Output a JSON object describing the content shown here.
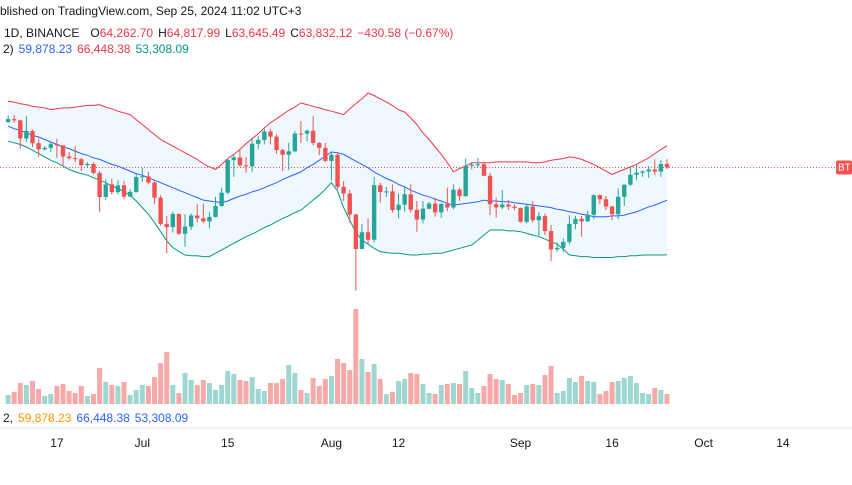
{
  "chart_data": {
    "type": "candlestick",
    "title": "blished on TradingView.com, Sep 25, 2024 11:02 UTC+3",
    "symbol": "1D, BINANCE",
    "ohlc": [
      {
        "key": "O",
        "value": "64,262.70"
      },
      {
        "key": "H",
        "value": "64,817.99"
      },
      {
        "key": "L",
        "value": "63,645.49"
      },
      {
        "key": "C",
        "value": "63,832.12"
      }
    ],
    "change": "−430.58 (−0.67%)",
    "bb_legend": {
      "label": "2)",
      "items": [
        {
          "text": "59,878.23",
          "color": "#2962ff"
        },
        {
          "text": "66,448.38",
          "color": "#f23645"
        },
        {
          "text": "53,308.09",
          "color": "#089981"
        }
      ]
    },
    "bottom_legend": {
      "label": "2,",
      "items": [
        {
          "text": "59,878.23",
          "color": "#ff9800"
        },
        {
          "text": "66,448.38",
          "color": "#2962ff"
        },
        {
          "text": "53,308.09",
          "color": "#2962ff"
        }
      ]
    },
    "price_tag": "BT",
    "up_color": "#26a69a",
    "down_color": "#ef5350",
    "volume_up_color": "#9ed7d2",
    "volume_down_color": "#f7a9a7",
    "band_fill": "rgba(33,150,243,0.07)",
    "xlim": [
      "06-08",
      "10-25"
    ],
    "xticks": [
      {
        "value": "06-17",
        "label": "17"
      },
      {
        "value": "07-01",
        "label": "Jul"
      },
      {
        "value": "07-15",
        "label": "15"
      },
      {
        "value": "08-01",
        "label": "Aug"
      },
      {
        "value": "08-12",
        "label": "12"
      },
      {
        "value": "09-01",
        "label": "Sep"
      },
      {
        "value": "09-16",
        "label": "16"
      },
      {
        "value": "10-01",
        "label": "Oct"
      },
      {
        "value": "10-14",
        "label": "14"
      }
    ],
    "ylim": [
      48000,
      74000
    ],
    "volume_lim": [
      0,
      100000
    ],
    "x": [
      "06-09",
      "06-10",
      "06-11",
      "06-12",
      "06-13",
      "06-14",
      "06-15",
      "06-16",
      "06-17",
      "06-18",
      "06-19",
      "06-20",
      "06-21",
      "06-22",
      "06-23",
      "06-24",
      "06-25",
      "06-26",
      "06-27",
      "06-28",
      "06-29",
      "06-30",
      "07-01",
      "07-02",
      "07-03",
      "07-04",
      "07-05",
      "07-06",
      "07-07",
      "07-08",
      "07-09",
      "07-10",
      "07-11",
      "07-12",
      "07-13",
      "07-14",
      "07-15",
      "07-16",
      "07-17",
      "07-18",
      "07-19",
      "07-20",
      "07-21",
      "07-22",
      "07-23",
      "07-24",
      "07-25",
      "07-26",
      "07-27",
      "07-28",
      "07-29",
      "07-30",
      "07-31",
      "08-01",
      "08-02",
      "08-03",
      "08-04",
      "08-05",
      "08-06",
      "08-07",
      "08-08",
      "08-09",
      "08-10",
      "08-11",
      "08-12",
      "08-13",
      "08-14",
      "08-15",
      "08-16",
      "08-17",
      "08-18",
      "08-19",
      "08-20",
      "08-21",
      "08-22",
      "08-23",
      "08-24",
      "08-25",
      "08-26",
      "08-27",
      "08-28",
      "08-29",
      "08-30",
      "08-31",
      "09-01",
      "09-02",
      "09-03",
      "09-04",
      "09-05",
      "09-06",
      "09-07",
      "09-08",
      "09-09",
      "09-10",
      "09-11",
      "09-12",
      "09-13",
      "09-14",
      "09-15",
      "09-16",
      "09-17",
      "09-18",
      "09-19",
      "09-20",
      "09-21",
      "09-22",
      "09-23",
      "09-24",
      "09-25"
    ],
    "open": [
      69300,
      69650,
      69500,
      67320,
      68240,
      66750,
      66010,
      66190,
      66640,
      66490,
      65150,
      64960,
      64830,
      64100,
      64260,
      63180,
      60280,
      61800,
      60860,
      61680,
      60320,
      60890,
      62680,
      62770,
      62020,
      60200,
      57040,
      56650,
      58240,
      55860,
      56710,
      58050,
      57720,
      57340,
      57880,
      59200,
      60800,
      64720,
      65040,
      64090,
      63970,
      66680,
      67150,
      68170,
      67540,
      65930,
      65370,
      65780,
      67910,
      67900,
      68250,
      66780,
      66190,
      64620,
      65350,
      61500,
      60700,
      58160,
      54020,
      56040,
      55130,
      61700,
      60880,
      60950,
      58710,
      59350,
      60600,
      58740,
      57560,
      58870,
      59490,
      58430,
      59440,
      59010,
      61160,
      60380,
      64040,
      64160,
      64220,
      62830,
      59410,
      59030,
      59370,
      59120,
      58970,
      57300,
      59130,
      57480,
      57970,
      56180,
      53960,
      54160,
      54880,
      57040,
      57650,
      57340,
      58130,
      60500,
      60000,
      59130,
      58210,
      60310,
      61760,
      62950,
      63200,
      63350,
      63580,
      63340,
      64262.7
    ],
    "high": [
      70100,
      70150,
      69550,
      69990,
      68400,
      67300,
      66400,
      66900,
      67300,
      66500,
      65700,
      66400,
      65000,
      64500,
      64500,
      63400,
      62400,
      62500,
      62300,
      62200,
      61200,
      63000,
      63800,
      63300,
      62300,
      60500,
      58000,
      58500,
      58300,
      58200,
      58300,
      59400,
      59500,
      58500,
      60300,
      61400,
      64900,
      65400,
      66100,
      65100,
      67400,
      67600,
      68500,
      68500,
      67800,
      66100,
      66800,
      68200,
      69400,
      68400,
      70000,
      66900,
      66800,
      65600,
      65600,
      62200,
      61100,
      58300,
      57000,
      57700,
      62700,
      62000,
      61500,
      61800,
      60700,
      61500,
      61800,
      59800,
      59800,
      59700,
      60200,
      59600,
      61400,
      61800,
      61400,
      64900,
      64500,
      65000,
      64500,
      63200,
      60200,
      61100,
      59900,
      59400,
      59000,
      59400,
      59800,
      58500,
      58300,
      56900,
      54800,
      55300,
      58100,
      58000,
      58000,
      58600,
      60600,
      60600,
      60400,
      59200,
      61300,
      61800,
      63900,
      64100,
      63500,
      64000,
      64800,
      64700,
      64817.99
    ],
    "low": [
      69200,
      69200,
      66100,
      66900,
      66300,
      65100,
      65900,
      65700,
      65000,
      64100,
      64700,
      64500,
      63400,
      63900,
      63000,
      58500,
      59900,
      60600,
      60600,
      60000,
      60300,
      60800,
      62100,
      61800,
      59400,
      56800,
      53500,
      56000,
      55700,
      54300,
      56300,
      57200,
      57100,
      56500,
      57800,
      59100,
      60600,
      62700,
      63900,
      63200,
      63300,
      66000,
      66600,
      66600,
      65500,
      63400,
      63500,
      65700,
      66800,
      67000,
      66500,
      65300,
      64500,
      62300,
      61200,
      59800,
      57200,
      49000,
      54000,
      54600,
      54800,
      59600,
      60300,
      58400,
      57700,
      58500,
      58400,
      56100,
      57100,
      58800,
      57900,
      57800,
      58600,
      58800,
      59800,
      60300,
      63600,
      63800,
      62800,
      58100,
      57800,
      58800,
      58700,
      58700,
      57200,
      57100,
      57200,
      55600,
      55700,
      52550,
      53700,
      53600,
      54600,
      56400,
      55500,
      57300,
      57600,
      59400,
      58700,
      57500,
      57600,
      59200,
      61600,
      62300,
      62700,
      62600,
      62900,
      62700,
      63645.49
    ],
    "close": [
      69650,
      69500,
      67320,
      68240,
      66750,
      66010,
      66190,
      66640,
      66490,
      65150,
      64960,
      64830,
      64100,
      64260,
      63180,
      60280,
      61800,
      60860,
      61680,
      60320,
      60890,
      62680,
      62770,
      62020,
      60200,
      57040,
      56650,
      58240,
      55860,
      56710,
      58050,
      57720,
      57340,
      57880,
      59200,
      60800,
      64720,
      65040,
      64090,
      63970,
      66680,
      67150,
      68170,
      67540,
      65930,
      65370,
      65780,
      67910,
      67900,
      68250,
      66780,
      66190,
      64620,
      65350,
      61500,
      60700,
      58160,
      54020,
      56040,
      55130,
      61700,
      60880,
      60950,
      58710,
      59350,
      60600,
      58740,
      57560,
      58870,
      59490,
      58430,
      59440,
      59010,
      61160,
      60380,
      64040,
      64160,
      64220,
      62830,
      59410,
      59030,
      59370,
      59120,
      58970,
      57300,
      59130,
      57480,
      57970,
      56180,
      53960,
      54160,
      54880,
      57040,
      57650,
      57340,
      58130,
      60500,
      60000,
      59130,
      58210,
      60310,
      61760,
      62950,
      63200,
      63350,
      63580,
      63340,
      64260,
      63832.12
    ],
    "volume": [
      9000,
      12000,
      21000,
      19000,
      23000,
      15000,
      8000,
      10000,
      18000,
      20000,
      13000,
      11000,
      18000,
      8000,
      10000,
      36000,
      22000,
      19000,
      18000,
      22000,
      9000,
      14000,
      19000,
      18000,
      27000,
      41000,
      52000,
      19000,
      11000,
      31000,
      24000,
      19000,
      24000,
      21000,
      14000,
      19000,
      33000,
      30000,
      24000,
      23000,
      27000,
      15000,
      13000,
      21000,
      21000,
      25000,
      39000,
      31000,
      14000,
      11000,
      26000,
      18000,
      25000,
      28000,
      45000,
      41000,
      34000,
      95000,
      45000,
      32000,
      40000,
      25000,
      10000,
      12000,
      23000,
      25000,
      31000,
      30000,
      20000,
      11000,
      10000,
      19000,
      20000,
      21000,
      20000,
      33000,
      16000,
      11000,
      18000,
      30000,
      25000,
      24000,
      20000,
      9000,
      11000,
      19000,
      20000,
      19000,
      29000,
      38000,
      11000,
      13000,
      26000,
      22000,
      28000,
      23000,
      22000,
      10000,
      13000,
      22000,
      23000,
      26000,
      28000,
      21000,
      11000,
      10000,
      16000,
      14000,
      10000
    ],
    "bands": [
      {
        "color": "#2962ff",
        "values": [
          68800,
          68500,
          68300,
          68000,
          67700,
          67500,
          67200,
          66900,
          66600,
          66300,
          66100,
          65800,
          65500,
          65300,
          65000,
          64800,
          64500,
          64200,
          64000,
          63700,
          63400,
          63100,
          62900,
          62600,
          62300,
          62000,
          61700,
          61400,
          61100,
          60800,
          60500,
          60200,
          59900,
          59800,
          59700,
          59600,
          59800,
          60100,
          60400,
          60600,
          60900,
          61100,
          61400,
          61700,
          62000,
          62400,
          62700,
          63000,
          63300,
          63800,
          64200,
          64700,
          65200,
          65700,
          65600,
          65400,
          65000,
          64600,
          64200,
          63800,
          63300,
          62900,
          62500,
          62200,
          61800,
          61500,
          61100,
          60800,
          60500,
          60300,
          60000,
          59800,
          59500,
          59300,
          59400,
          59500,
          59600,
          59700,
          59900,
          59800,
          59800,
          59700,
          59700,
          59600,
          59500,
          59400,
          59300,
          59200,
          59100,
          59000,
          58800,
          58700,
          58500,
          58400,
          58200,
          58100,
          57900,
          57900,
          57900,
          58000,
          58000,
          58100,
          58300,
          58500,
          58800,
          59100,
          59300,
          59600,
          59878.23
        ]
      },
      {
        "color": "#f23645",
        "values": [
          71800,
          71700,
          71500,
          71400,
          71200,
          71100,
          71000,
          70800,
          70900,
          71000,
          71000,
          71100,
          71200,
          71300,
          71300,
          71400,
          71100,
          70900,
          70600,
          70400,
          70200,
          69600,
          69000,
          68400,
          67800,
          67200,
          66800,
          66400,
          66000,
          65600,
          65200,
          64800,
          64300,
          63900,
          63600,
          64200,
          64900,
          65400,
          66000,
          66700,
          67300,
          67900,
          68600,
          69200,
          69700,
          70200,
          70700,
          71100,
          71600,
          71400,
          71200,
          71000,
          70800,
          70600,
          70400,
          70200,
          70900,
          71500,
          72100,
          72800,
          72500,
          72100,
          71700,
          71300,
          70800,
          70500,
          69800,
          69000,
          68000,
          67200,
          66300,
          65400,
          64400,
          63300,
          63700,
          64000,
          64400,
          64400,
          64400,
          64400,
          64500,
          64500,
          64500,
          64500,
          64500,
          64500,
          64400,
          64400,
          64500,
          64700,
          64800,
          64900,
          65100,
          65000,
          64800,
          64500,
          64200,
          63800,
          63400,
          63000,
          63300,
          63600,
          63900,
          64200,
          64600,
          65000,
          65500,
          66000,
          66448.38
        ]
      },
      {
        "color": "#089981",
        "values": [
          67000,
          66800,
          66600,
          66300,
          65900,
          65500,
          65100,
          64700,
          64400,
          64000,
          63600,
          63300,
          63100,
          62900,
          62600,
          62300,
          62000,
          61600,
          61300,
          60900,
          60500,
          59800,
          59000,
          58200,
          57200,
          56100,
          55000,
          54200,
          53700,
          53300,
          53200,
          53200,
          53100,
          53100,
          53500,
          53900,
          54300,
          54700,
          55100,
          55500,
          55800,
          56200,
          56600,
          56900,
          57300,
          57700,
          58000,
          58400,
          58700,
          59300,
          59900,
          60500,
          61200,
          62000,
          61000,
          59000,
          57500,
          56000,
          55100,
          54600,
          54100,
          53700,
          53600,
          53500,
          53500,
          53400,
          53300,
          53300,
          53400,
          53400,
          53500,
          53500,
          53700,
          53900,
          54100,
          54300,
          54500,
          55100,
          55700,
          56300,
          56300,
          56300,
          56200,
          56200,
          56100,
          55900,
          55700,
          55500,
          55200,
          54900,
          54600,
          54000,
          53300,
          53200,
          53100,
          53100,
          53000,
          53000,
          53000,
          53000,
          53100,
          53100,
          53200,
          53200,
          53300,
          53300,
          53300,
          53300,
          53308.09
        ]
      }
    ]
  }
}
